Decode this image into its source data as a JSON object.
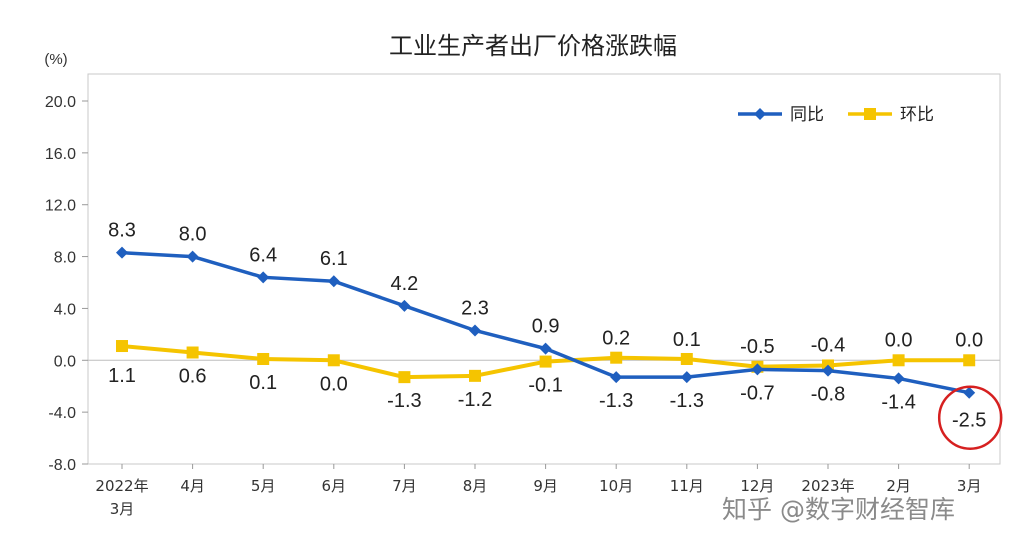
{
  "chart_data": {
    "type": "line",
    "title": "工业生产者出厂价格涨跌幅",
    "ylabel": "(%)",
    "ylim": [
      -8.0,
      20.0
    ],
    "yticks": [
      "20.0",
      "16.0",
      "12.0",
      "8.0",
      "4.0",
      "0.0",
      "-4.0",
      "-8.0"
    ],
    "categories": [
      [
        "2022年",
        "3月"
      ],
      [
        "4月"
      ],
      [
        "5月"
      ],
      [
        "6月"
      ],
      [
        "7月"
      ],
      [
        "8月"
      ],
      [
        "9月"
      ],
      [
        "10月"
      ],
      [
        "11月"
      ],
      [
        "12月"
      ],
      [
        "2023年"
      ],
      [
        "2月"
      ],
      [
        "3月"
      ]
    ],
    "series": [
      {
        "name": "同比",
        "color": "#1f5fbf",
        "marker": "diamond",
        "values": [
          8.3,
          8.0,
          6.4,
          6.1,
          4.2,
          2.3,
          0.9,
          -1.3,
          -1.3,
          -0.7,
          -0.8,
          -1.4,
          -2.5
        ],
        "labels": [
          "8.3",
          "8.0",
          "6.4",
          "6.1",
          "4.2",
          "2.3",
          "0.9",
          "-1.3",
          "-1.3",
          "-0.7",
          "-0.8",
          "-1.4",
          "-2.5"
        ]
      },
      {
        "name": "环比",
        "color": "#f5c400",
        "marker": "square",
        "values": [
          1.1,
          0.6,
          0.1,
          0.0,
          -1.3,
          -1.2,
          -0.1,
          0.2,
          0.1,
          -0.5,
          -0.4,
          0.0,
          0.0
        ],
        "labels": [
          "1.1",
          "0.6",
          "0.1",
          "0.0",
          "-1.3",
          "-1.2",
          "-0.1",
          "0.2",
          "0.1",
          "-0.5",
          "-0.4",
          "0.0",
          "0.0"
        ]
      }
    ],
    "legend": "top-right",
    "highlight": {
      "series": 0,
      "index": 12,
      "color": "#d62020"
    }
  },
  "watermark": "知乎 @数字财经智库"
}
